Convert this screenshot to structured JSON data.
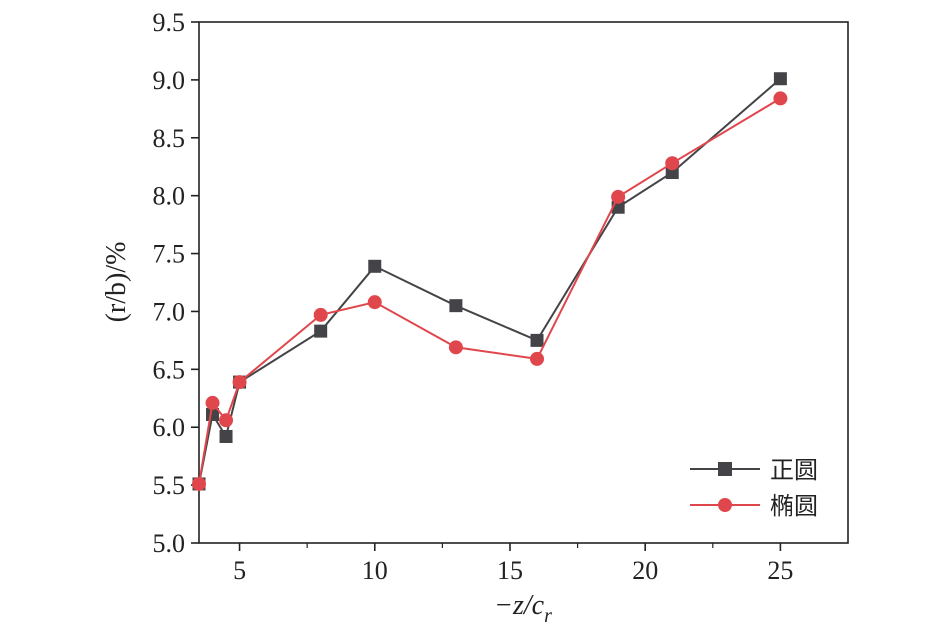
{
  "chart_data": {
    "type": "line",
    "xlabel": "−z/c",
    "xlabel_sub": "r",
    "ylabel": "(r/b)/%",
    "xlim": [
      3.5,
      27.5
    ],
    "ylim": [
      5.0,
      9.5
    ],
    "xticks": [
      5,
      10,
      15,
      20,
      25
    ],
    "yticks": [
      5.0,
      5.5,
      6.0,
      6.5,
      7.0,
      7.5,
      8.0,
      8.5,
      9.0,
      9.5
    ],
    "grid": false,
    "legend_position": "bottom-right",
    "series": [
      {
        "name": "正圆",
        "color": "#444448",
        "marker": "square",
        "x": [
          3.5,
          4,
          4.5,
          5,
          8,
          10,
          13,
          16,
          19,
          21,
          25
        ],
        "y": [
          5.51,
          6.11,
          5.92,
          6.39,
          6.83,
          7.39,
          7.05,
          6.75,
          7.9,
          8.2,
          9.01
        ]
      },
      {
        "name": "椭圆",
        "color": "#e0474c",
        "marker": "circle",
        "x": [
          3.5,
          4,
          4.5,
          5,
          8,
          10,
          13,
          16,
          19,
          21,
          25
        ],
        "y": [
          5.51,
          6.21,
          6.06,
          6.39,
          6.97,
          7.08,
          6.69,
          6.59,
          7.99,
          8.28,
          8.84
        ]
      }
    ]
  }
}
